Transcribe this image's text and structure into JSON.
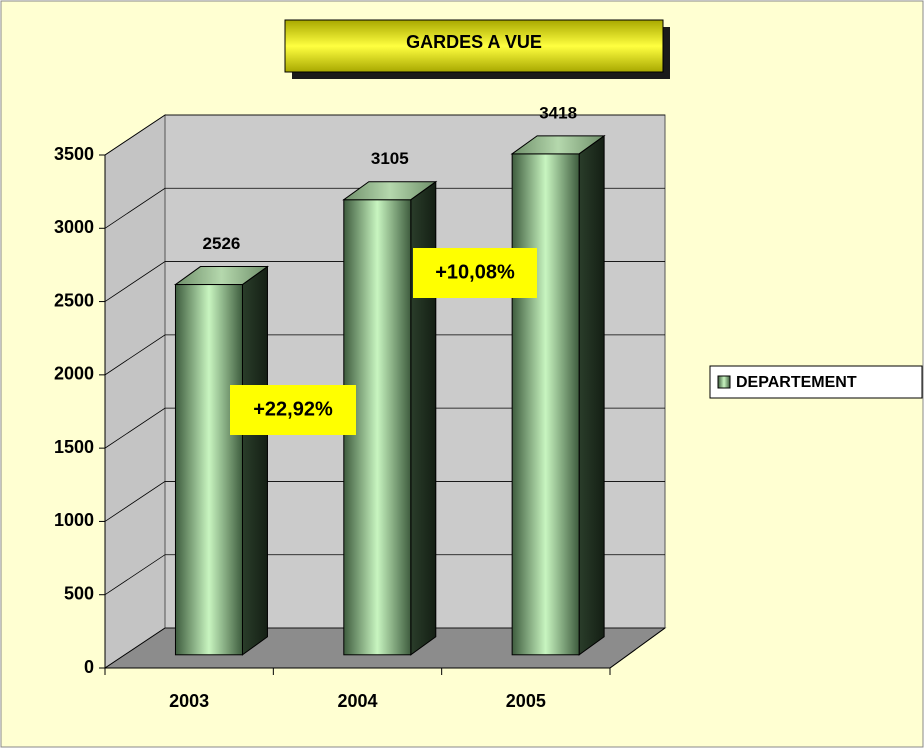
{
  "chart_data": {
    "type": "bar3d",
    "title": "GARDES A VUE",
    "categories": [
      "2003",
      "2004",
      "2005"
    ],
    "series": [
      {
        "name": "DEPARTEMENT",
        "color": "#5c7d5c",
        "values": [
          2526,
          3105,
          3418
        ]
      }
    ],
    "ylim": [
      0,
      3500
    ],
    "yticks": [
      0,
      500,
      1000,
      1500,
      2000,
      2500,
      3000,
      3500
    ],
    "grid": true,
    "legend": "right",
    "annotations": [
      "+22,92%",
      "+10,08%"
    ]
  }
}
